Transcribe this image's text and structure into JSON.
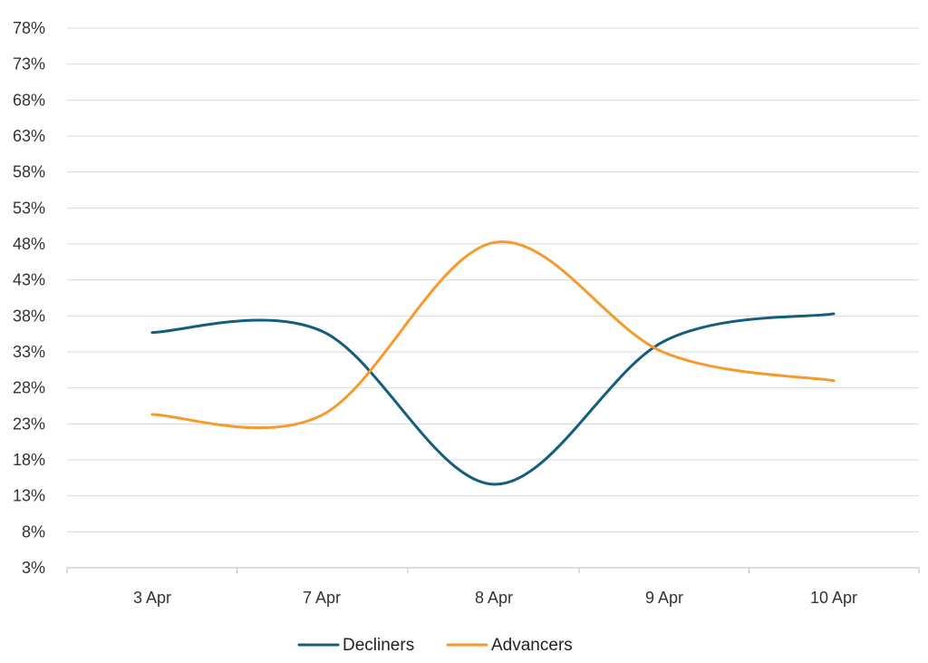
{
  "chart_data": {
    "type": "line",
    "title": "",
    "xlabel": "",
    "ylabel": "",
    "categories": [
      "3 Apr",
      "7 Apr",
      "8 Apr",
      "9 Apr",
      "10 Apr"
    ],
    "y_ticks": [
      "3%",
      "8%",
      "13%",
      "18%",
      "23%",
      "28%",
      "33%",
      "38%",
      "43%",
      "48%",
      "53%",
      "58%",
      "63%",
      "68%",
      "73%",
      "78%"
    ],
    "ylim": [
      3,
      78
    ],
    "grid": "horizontal",
    "smooth": true,
    "legend_position": "bottom",
    "series": [
      {
        "name": "Decliners",
        "color": "#135e7c",
        "values": [
          35.7,
          35.9,
          14.6,
          34.5,
          38.3
        ]
      },
      {
        "name": "Advancers",
        "color": "#f59a2b",
        "values": [
          24.3,
          24.2,
          48.2,
          32.9,
          29.0
        ]
      }
    ]
  }
}
